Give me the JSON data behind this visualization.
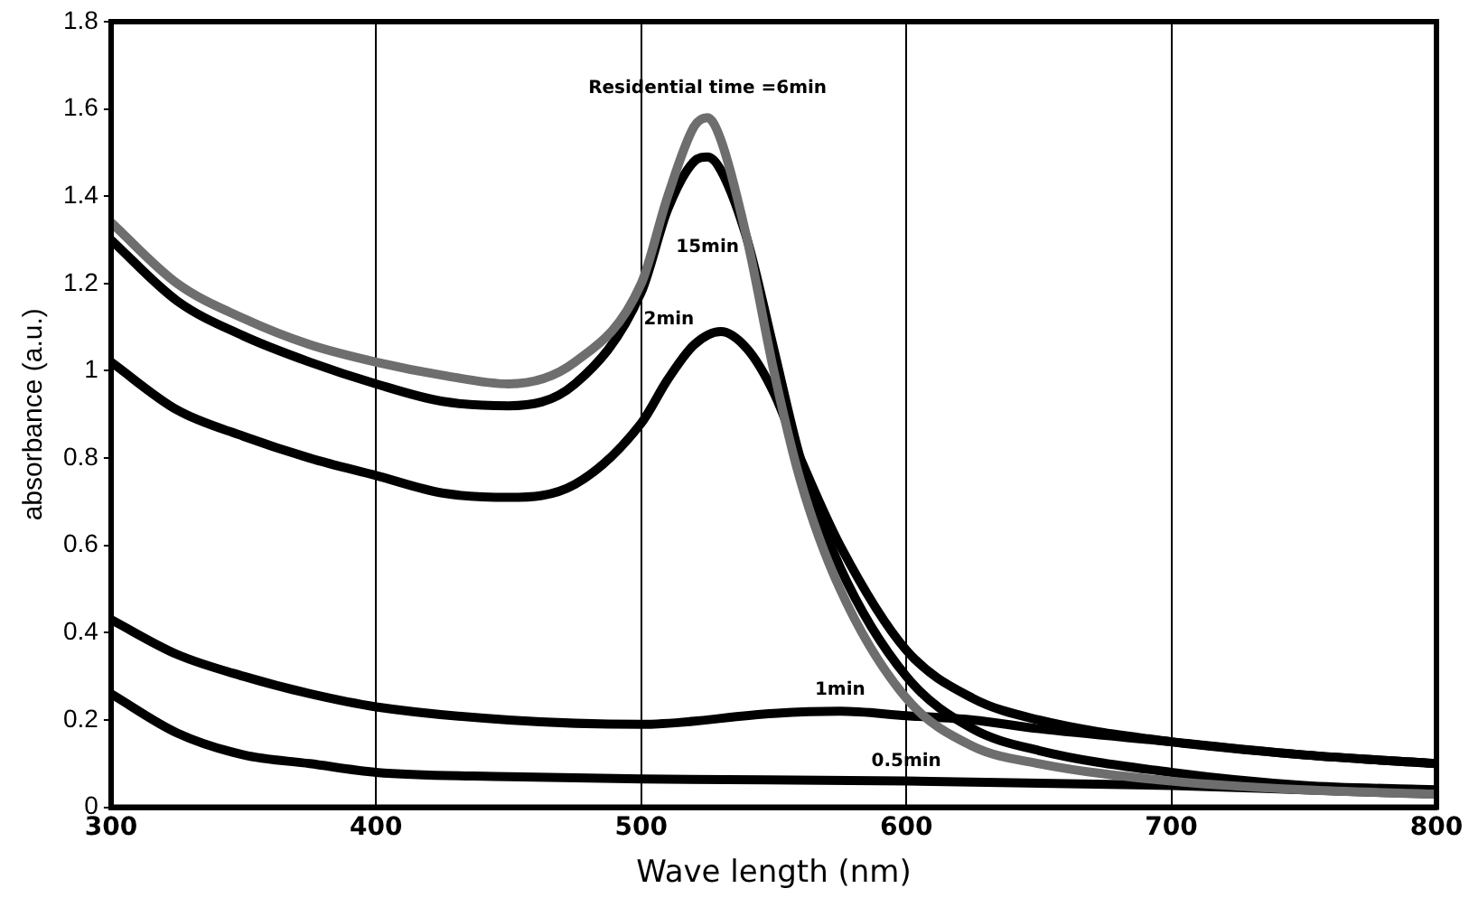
{
  "chart_data": {
    "type": "line",
    "xlabel": "Wave length (nm)",
    "ylabel": "absorbance (a.u.)",
    "xlim": [
      300,
      800
    ],
    "xticks": [
      300,
      400,
      500,
      600,
      700,
      800
    ],
    "ylim": [
      0,
      1.8
    ],
    "yticks": [
      0,
      0.2,
      0.4,
      0.6,
      0.8,
      {
        "value": 1,
        "label": "1"
      },
      1.2,
      1.4,
      1.6,
      1.8
    ],
    "grid": "x",
    "legend": false,
    "marker": "none",
    "line_style": "solid",
    "series": [
      {
        "name": "Residential time =6min",
        "color": "#6e6e6e",
        "x": [
          300,
          325,
          350,
          375,
          400,
          425,
          450,
          475,
          500,
          510,
          520,
          525,
          530,
          540,
          550,
          560,
          575,
          600,
          625,
          650,
          700,
          750,
          800
        ],
        "values": [
          1.34,
          1.2,
          1.12,
          1.06,
          1.02,
          0.99,
          0.97,
          1.02,
          1.2,
          1.4,
          1.56,
          1.58,
          1.53,
          1.3,
          1.0,
          0.75,
          0.5,
          0.25,
          0.14,
          0.1,
          0.06,
          0.04,
          0.03
        ]
      },
      {
        "name": "15min",
        "color": "#000000",
        "x": [
          300,
          325,
          350,
          375,
          400,
          425,
          450,
          475,
          500,
          510,
          520,
          525,
          530,
          540,
          550,
          560,
          575,
          600,
          625,
          650,
          700,
          750,
          800
        ],
        "values": [
          1.3,
          1.16,
          1.08,
          1.02,
          0.97,
          0.93,
          0.92,
          0.97,
          1.18,
          1.37,
          1.48,
          1.49,
          1.46,
          1.3,
          1.05,
          0.8,
          0.55,
          0.3,
          0.18,
          0.13,
          0.08,
          0.05,
          0.04
        ]
      },
      {
        "name": "2min",
        "color": "#000000",
        "x": [
          300,
          325,
          350,
          375,
          400,
          425,
          450,
          475,
          500,
          510,
          520,
          530,
          540,
          550,
          560,
          575,
          600,
          625,
          650,
          700,
          750,
          800
        ],
        "values": [
          1.02,
          0.91,
          0.85,
          0.8,
          0.76,
          0.72,
          0.71,
          0.74,
          0.88,
          0.98,
          1.06,
          1.09,
          1.05,
          0.95,
          0.8,
          0.6,
          0.36,
          0.25,
          0.2,
          0.15,
          0.12,
          0.1
        ]
      },
      {
        "name": "1min",
        "color": "#000000",
        "x": [
          300,
          325,
          350,
          375,
          400,
          450,
          500,
          550,
          575,
          600,
          625,
          650,
          700,
          750,
          800
        ],
        "values": [
          0.43,
          0.35,
          0.3,
          0.26,
          0.23,
          0.2,
          0.19,
          0.215,
          0.22,
          0.21,
          0.2,
          0.18,
          0.15,
          0.12,
          0.1
        ]
      },
      {
        "name": "0.5min",
        "color": "#000000",
        "x": [
          300,
          325,
          350,
          375,
          400,
          450,
          500,
          600,
          700,
          750,
          800
        ],
        "values": [
          0.26,
          0.17,
          0.12,
          0.1,
          0.08,
          0.07,
          0.065,
          0.06,
          0.05,
          0.04,
          0.03
        ]
      }
    ]
  }
}
